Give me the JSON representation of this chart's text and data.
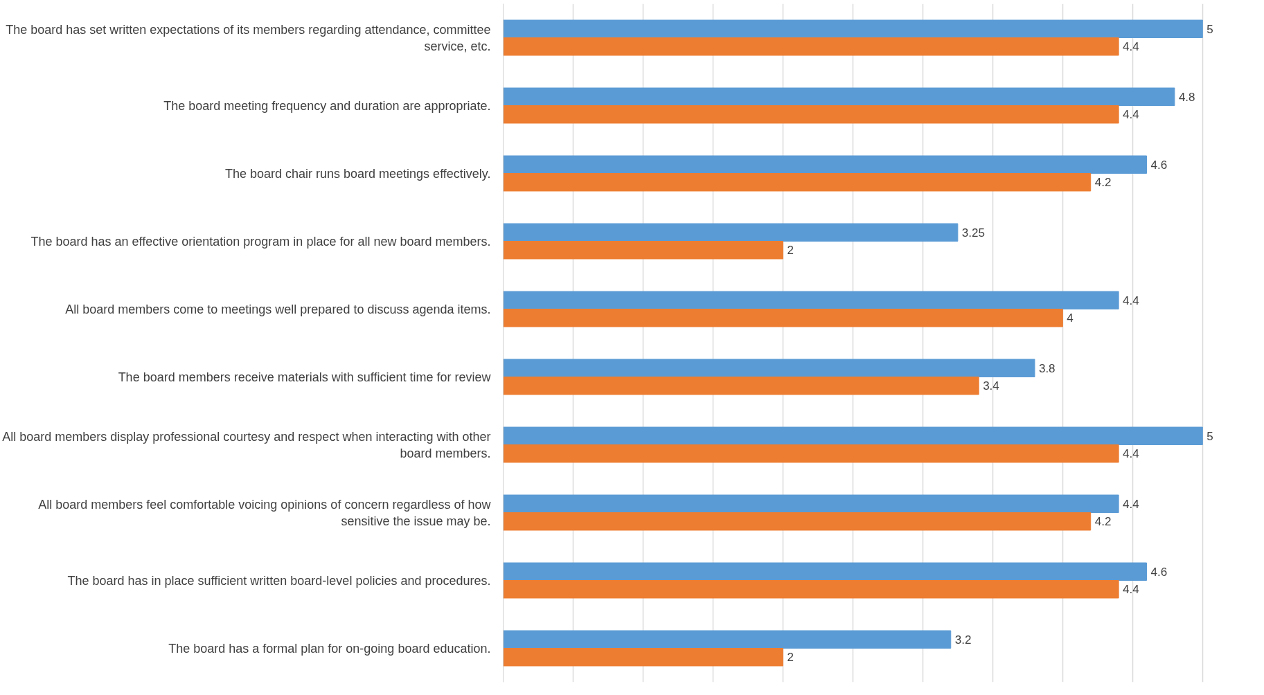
{
  "chart_data": {
    "type": "bar",
    "orientation": "horizontal",
    "categories": [
      "The board has set written expectations of its members regarding attendance, committee service, etc.",
      "The board meeting frequency and duration are appropriate.",
      "The board chair runs board meetings effectively.",
      "The board has an effective orientation program in place for all new board members.",
      "All board members come to meetings well prepared to discuss agenda items.",
      "The board members receive materials with sufficient time for review",
      "All board members display professional courtesy and respect when interacting with other board members.",
      "All board members feel comfortable voicing opinions of concern regardless of how sensitive the issue may be.",
      "The board has in place sufficient written board-level policies and procedures.",
      "The board has a formal plan for on-going board education."
    ],
    "series": [
      {
        "color": "#5b9bd5",
        "values": [
          5,
          4.8,
          4.6,
          3.25,
          4.4,
          3.8,
          5,
          4.4,
          4.6,
          3.2
        ]
      },
      {
        "color": "#ed7d31",
        "values": [
          4.4,
          4.4,
          4.2,
          2,
          4,
          3.4,
          4.4,
          4.2,
          4.4,
          2
        ]
      }
    ],
    "xlim": [
      0,
      5
    ],
    "xticks": [
      {
        "value": 0,
        "label": null
      },
      {
        "value": 0.5,
        "label": null
      },
      {
        "value": 1,
        "label": null
      },
      {
        "value": 1.5,
        "label": null
      },
      {
        "value": 2,
        "label": null
      },
      {
        "value": 2.5,
        "label": null
      },
      {
        "value": 3,
        "label": null
      },
      {
        "value": 3.5,
        "label": null
      },
      {
        "value": 4,
        "label": null
      },
      {
        "value": 4.5,
        "label": null
      },
      {
        "value": 5,
        "label": null
      }
    ],
    "grid": "x",
    "tick_labels": "y",
    "data_labels": true
  }
}
